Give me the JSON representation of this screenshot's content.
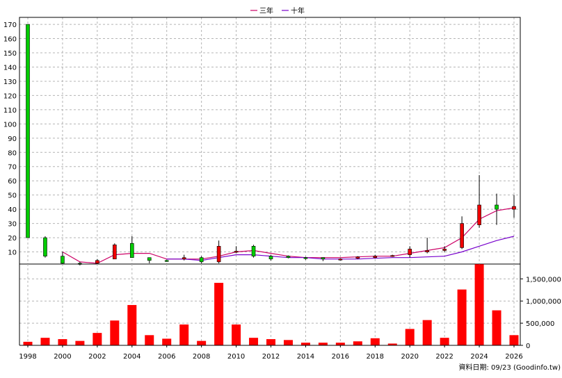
{
  "legend": [
    {
      "name": "三年",
      "color": "#cc0066"
    },
    {
      "name": "十年",
      "color": "#7700cc"
    }
  ],
  "footer_note": "資料日期: 09/23  (Goodinfo.tw)",
  "chart_data": [
    {
      "type": "candlestick",
      "xlim": [
        1998,
        2026
      ],
      "x_ticks": [
        "1998",
        "2000",
        "2002",
        "2004",
        "2006",
        "2008",
        "2010",
        "2012",
        "2014",
        "2016",
        "2018",
        "2020",
        "2022",
        "2024",
        "2026"
      ],
      "ylim": [
        0,
        172
      ],
      "y_ticks": [
        "10",
        "20",
        "30",
        "40",
        "50",
        "60",
        "70",
        "80",
        "90",
        "100",
        "110",
        "120",
        "130",
        "140",
        "150",
        "160",
        "170"
      ],
      "grid": true,
      "colors": {
        "up": "#ee0000",
        "down": "#00cc00"
      },
      "candles": [
        {
          "year": 1998,
          "open": 170,
          "close": 20,
          "high": 170,
          "low": 20
        },
        {
          "year": 1999,
          "open": 20,
          "close": 7,
          "high": 21,
          "low": 6
        },
        {
          "year": 2000,
          "open": 7,
          "close": 2,
          "high": 10,
          "low": 1
        },
        {
          "year": 2001,
          "open": 2,
          "close": 1.5,
          "high": 3,
          "low": 0.5
        },
        {
          "year": 2002,
          "open": 2,
          "close": 4,
          "high": 5,
          "low": 1.5
        },
        {
          "year": 2003,
          "open": 5,
          "close": 15,
          "high": 16,
          "low": 5
        },
        {
          "year": 2004,
          "open": 16,
          "close": 6,
          "high": 21,
          "low": 6
        },
        {
          "year": 2005,
          "open": 6,
          "close": 4,
          "high": 6,
          "low": 2
        },
        {
          "year": 2006,
          "open": 4,
          "close": 3.5,
          "high": 4.5,
          "low": 3
        },
        {
          "year": 2007,
          "open": 5,
          "close": 6,
          "high": 8,
          "low": 4
        },
        {
          "year": 2008,
          "open": 6,
          "close": 3,
          "high": 7,
          "low": 2
        },
        {
          "year": 2009,
          "open": 3,
          "close": 14,
          "high": 18,
          "low": 2
        },
        {
          "year": 2010,
          "open": 10,
          "close": 10.5,
          "high": 14,
          "low": 9
        },
        {
          "year": 2011,
          "open": 14,
          "close": 7,
          "high": 15,
          "low": 6
        },
        {
          "year": 2012,
          "open": 7,
          "close": 5,
          "high": 8,
          "low": 4
        },
        {
          "year": 2013,
          "open": 7,
          "close": 6,
          "high": 7.5,
          "low": 5.5
        },
        {
          "year": 2014,
          "open": 6,
          "close": 5.5,
          "high": 6.5,
          "low": 4.5
        },
        {
          "year": 2015,
          "open": 6,
          "close": 5,
          "high": 6,
          "low": 3.5
        },
        {
          "year": 2016,
          "open": 5,
          "close": 5,
          "high": 5.5,
          "low": 4
        },
        {
          "year": 2017,
          "open": 5.5,
          "close": 6.5,
          "high": 7,
          "low": 5
        },
        {
          "year": 2018,
          "open": 6,
          "close": 7,
          "high": 8,
          "low": 5.5
        },
        {
          "year": 2019,
          "open": 7,
          "close": 7.5,
          "high": 8,
          "low": 6.5
        },
        {
          "year": 2020,
          "open": 8,
          "close": 12,
          "high": 14,
          "low": 6
        },
        {
          "year": 2021,
          "open": 10,
          "close": 11,
          "high": 20,
          "low": 9
        },
        {
          "year": 2022,
          "open": 11,
          "close": 12,
          "high": 14,
          "low": 10
        },
        {
          "year": 2023,
          "open": 13,
          "close": 30,
          "high": 35,
          "low": 12
        },
        {
          "year": 2024,
          "open": 29,
          "close": 43,
          "high": 64,
          "low": 27
        },
        {
          "year": 2025,
          "open": 43,
          "close": 40,
          "high": 51,
          "low": 29
        },
        {
          "year": 2026,
          "open": 40,
          "close": 42,
          "high": 50,
          "low": 34
        }
      ],
      "series": [
        {
          "name": "三年",
          "color": "#cc0066",
          "x": [
            2000,
            2001,
            2002,
            2003,
            2004,
            2005,
            2006,
            2007,
            2008,
            2009,
            2010,
            2011,
            2012,
            2013,
            2014,
            2015,
            2016,
            2017,
            2018,
            2019,
            2020,
            2021,
            2022,
            2023,
            2024,
            2025,
            2026
          ],
          "values": [
            10,
            3,
            2,
            8,
            9,
            9,
            5,
            5,
            5,
            7,
            10,
            11,
            9,
            7,
            6,
            6,
            6,
            6.5,
            7,
            7,
            9,
            11,
            13,
            20,
            33,
            39,
            41
          ]
        },
        {
          "name": "十年",
          "color": "#7700cc",
          "x": [
            2006,
            2007,
            2008,
            2009,
            2010,
            2011,
            2012,
            2013,
            2014,
            2015,
            2016,
            2017,
            2018,
            2019,
            2020,
            2021,
            2022,
            2023,
            2024,
            2025,
            2026
          ],
          "values": [
            5,
            5,
            4,
            6,
            8,
            8,
            7,
            6,
            6,
            5,
            5,
            5,
            5.5,
            6,
            6,
            6.5,
            7,
            10,
            14,
            18,
            21
          ]
        }
      ]
    },
    {
      "type": "bar",
      "color": "#ff0000",
      "xlim": [
        1998,
        2026
      ],
      "ylim": [
        0,
        1850000
      ],
      "y_ticks": [
        "0",
        "500,000",
        "1,000,000",
        "1,500,000"
      ],
      "grid": true,
      "x": [
        1998,
        1999,
        2000,
        2001,
        2002,
        2003,
        2004,
        2005,
        2006,
        2007,
        2008,
        2009,
        2010,
        2011,
        2012,
        2013,
        2014,
        2015,
        2016,
        2017,
        2018,
        2019,
        2020,
        2021,
        2022,
        2023,
        2024,
        2025,
        2026
      ],
      "values": [
        80000,
        170000,
        140000,
        100000,
        280000,
        560000,
        910000,
        230000,
        150000,
        470000,
        100000,
        1410000,
        470000,
        170000,
        140000,
        120000,
        60000,
        60000,
        60000,
        90000,
        160000,
        40000,
        370000,
        570000,
        170000,
        1260000,
        1830000,
        790000,
        230000
      ]
    }
  ]
}
